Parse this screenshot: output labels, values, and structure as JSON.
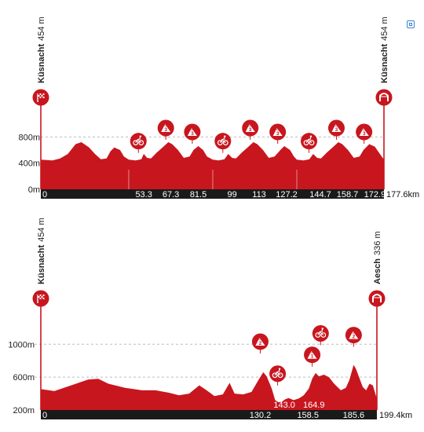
{
  "colors": {
    "profile": "#c8161e",
    "profile_dark": "#a91118",
    "axis_bar": "#1a1a1a",
    "grid": "#bdbdbd"
  },
  "corner_icon": "expand-icon",
  "chart_data": [
    {
      "type": "area",
      "start": {
        "place": "Küsnacht",
        "elev_text": "454 m",
        "icon": "checkered-flag-icon"
      },
      "finish": {
        "place": "Küsnacht",
        "elev_text": "454 m",
        "icon": "finish-arch-icon"
      },
      "y_ticks": [
        {
          "label": "800m",
          "value": 800
        },
        {
          "label": "400m",
          "value": 400
        },
        {
          "label": "0m",
          "value": 0
        }
      ],
      "ylim": [
        0,
        1200
      ],
      "xlim": [
        0,
        177.6
      ],
      "x_end_label": "177.6km",
      "x_tick_labels": [
        {
          "label": "0",
          "value": 0
        },
        {
          "label": "53.3",
          "value": 53.3
        },
        {
          "label": "67.3",
          "value": 67.3
        },
        {
          "label": "81.5",
          "value": 81.5
        },
        {
          "label": "99",
          "value": 99
        },
        {
          "label": "113",
          "value": 113
        },
        {
          "label": "127.2",
          "value": 127.2
        },
        {
          "label": "144.7",
          "value": 144.7
        },
        {
          "label": "158.7",
          "value": 158.7
        },
        {
          "label": "172.9",
          "value": 172.9
        }
      ],
      "lap_lines": [
        45.5,
        89,
        132.5
      ],
      "profile": [
        [
          0,
          454
        ],
        [
          6,
          440
        ],
        [
          10,
          470
        ],
        [
          14,
          540
        ],
        [
          18,
          690
        ],
        [
          21,
          720
        ],
        [
          25,
          640
        ],
        [
          28,
          540
        ],
        [
          31,
          460
        ],
        [
          34,
          470
        ],
        [
          36,
          580
        ],
        [
          38,
          640
        ],
        [
          41,
          600
        ],
        [
          43,
          500
        ],
        [
          45.5,
          454
        ],
        [
          49,
          440
        ],
        [
          52,
          460
        ],
        [
          53.3,
          540
        ],
        [
          55,
          480
        ],
        [
          57,
          470
        ],
        [
          60,
          560
        ],
        [
          63,
          640
        ],
        [
          66,
          720
        ],
        [
          68,
          690
        ],
        [
          71,
          600
        ],
        [
          74,
          480
        ],
        [
          77,
          500
        ],
        [
          79,
          600
        ],
        [
          81.5,
          660
        ],
        [
          84,
          600
        ],
        [
          86,
          500
        ],
        [
          89,
          454
        ],
        [
          92,
          440
        ],
        [
          95,
          460
        ],
        [
          97,
          540
        ],
        [
          99,
          480
        ],
        [
          101,
          470
        ],
        [
          104,
          560
        ],
        [
          107,
          640
        ],
        [
          110,
          720
        ],
        [
          112,
          690
        ],
        [
          115,
          600
        ],
        [
          118,
          480
        ],
        [
          121,
          500
        ],
        [
          124,
          600
        ],
        [
          126,
          660
        ],
        [
          129,
          600
        ],
        [
          131,
          500
        ],
        [
          132.5,
          454
        ],
        [
          136,
          440
        ],
        [
          139,
          460
        ],
        [
          141,
          540
        ],
        [
          143,
          480
        ],
        [
          145,
          470
        ],
        [
          148,
          560
        ],
        [
          151,
          640
        ],
        [
          154,
          720
        ],
        [
          156,
          690
        ],
        [
          159,
          600
        ],
        [
          162,
          480
        ],
        [
          165,
          500
        ],
        [
          167,
          600
        ],
        [
          170,
          690
        ],
        [
          172.9,
          650
        ],
        [
          175,
          560
        ],
        [
          177.6,
          454
        ]
      ],
      "climbs": [
        {
          "km": 50.5,
          "elev": 520,
          "icon": "sprint-bike-icon"
        },
        {
          "km": 64.7,
          "elev": 720,
          "icon": "mountain-climb-icon",
          "cat": "3"
        },
        {
          "km": 78.4,
          "elev": 660,
          "icon": "mountain-climb-icon",
          "cat": "3"
        },
        {
          "km": 94.2,
          "elev": 520,
          "icon": "sprint-bike-icon"
        },
        {
          "km": 108.4,
          "elev": 720,
          "icon": "mountain-climb-icon",
          "cat": "3"
        },
        {
          "km": 122.6,
          "elev": 660,
          "icon": "mountain-climb-icon",
          "cat": "3"
        },
        {
          "km": 138.8,
          "elev": 520,
          "icon": "sprint-bike-icon"
        },
        {
          "km": 153,
          "elev": 720,
          "icon": "mountain-climb-icon",
          "cat": "3"
        },
        {
          "km": 167.3,
          "elev": 660,
          "icon": "mountain-climb-icon",
          "cat": "3"
        }
      ]
    },
    {
      "type": "area",
      "start": {
        "place": "Küsnacht",
        "elev_text": "454 m",
        "icon": "checkered-flag-icon"
      },
      "finish": {
        "place": "Aesch",
        "elev_text": "336 m",
        "icon": "finish-arch-icon"
      },
      "y_ticks": [
        {
          "label": "1000m",
          "value": 1000
        },
        {
          "label": "600m",
          "value": 600
        },
        {
          "label": "200m",
          "value": 200
        }
      ],
      "ylim": [
        200,
        1500
      ],
      "xlim": [
        0,
        199.4
      ],
      "x_end_label": "199.4km",
      "x_tick_labels": [
        {
          "label": "0",
          "value": 0
        },
        {
          "label": "130.2",
          "value": 130.2
        },
        {
          "label": "158.5",
          "value": 158.5
        },
        {
          "label": "185.6",
          "value": 185.6
        }
      ],
      "x_marker_labels": [
        {
          "label": "143.0",
          "value": 144.5
        },
        {
          "label": "164.9",
          "value": 162
        }
      ],
      "profile": [
        [
          0,
          454
        ],
        [
          8,
          430
        ],
        [
          18,
          500
        ],
        [
          28,
          570
        ],
        [
          34,
          580
        ],
        [
          40,
          520
        ],
        [
          50,
          470
        ],
        [
          60,
          440
        ],
        [
          68,
          440
        ],
        [
          76,
          410
        ],
        [
          82,
          380
        ],
        [
          88,
          400
        ],
        [
          94,
          500
        ],
        [
          99,
          430
        ],
        [
          103,
          370
        ],
        [
          108,
          390
        ],
        [
          112,
          530
        ],
        [
          115,
          400
        ],
        [
          120,
          390
        ],
        [
          125,
          420
        ],
        [
          129,
          560
        ],
        [
          132,
          660
        ],
        [
          134,
          610
        ],
        [
          137,
          460
        ],
        [
          139,
          320
        ],
        [
          141,
          295
        ],
        [
          143,
          300
        ],
        [
          145,
          330
        ],
        [
          147,
          345
        ],
        [
          150,
          320
        ],
        [
          153,
          340
        ],
        [
          156,
          380
        ],
        [
          159,
          460
        ],
        [
          161,
          580
        ],
        [
          163,
          650
        ],
        [
          165,
          610
        ],
        [
          168,
          630
        ],
        [
          171,
          600
        ],
        [
          174,
          520
        ],
        [
          176,
          480
        ],
        [
          178,
          440
        ],
        [
          181,
          470
        ],
        [
          183,
          560
        ],
        [
          185.6,
          750
        ],
        [
          187,
          700
        ],
        [
          189,
          590
        ],
        [
          191,
          480
        ],
        [
          193,
          440
        ],
        [
          195,
          520
        ],
        [
          197,
          500
        ],
        [
          199.4,
          336
        ]
      ],
      "climbs": [
        {
          "km": 130.2,
          "elev": 860,
          "icon": "mountain-climb-icon",
          "cat": "2"
        },
        {
          "km": 140.5,
          "elev": 470,
          "icon": "sprint-bike-icon"
        },
        {
          "km": 161,
          "elev": 700,
          "icon": "mountain-climb-icon",
          "cat": "1"
        },
        {
          "km": 166,
          "elev": 960,
          "icon": "sprint-bike-icon"
        },
        {
          "km": 185.6,
          "elev": 940,
          "icon": "mountain-climb-icon",
          "cat": "2"
        }
      ]
    }
  ]
}
